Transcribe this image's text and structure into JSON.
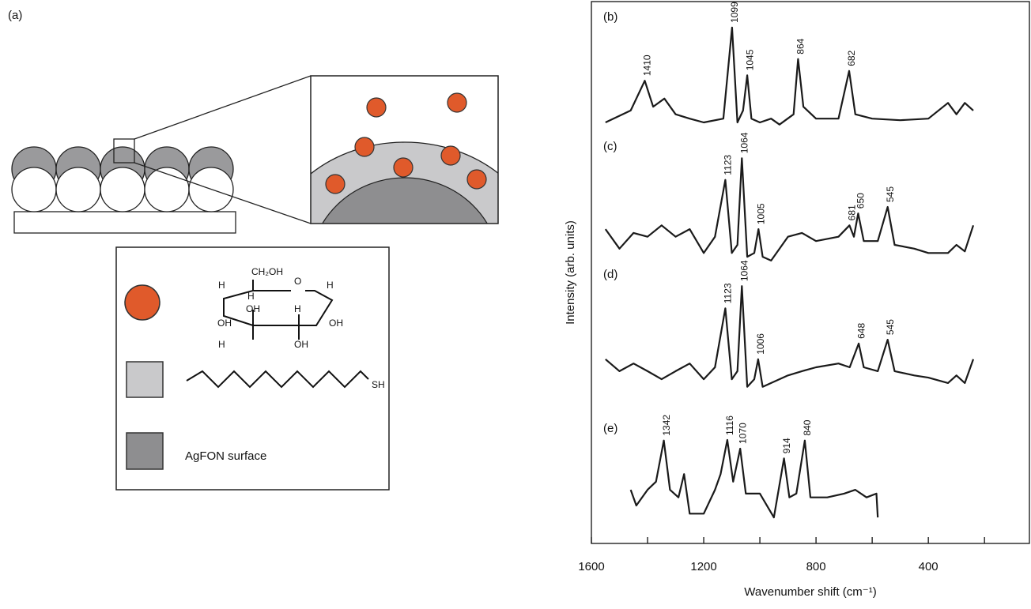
{
  "panel_a": {
    "label": "(a)",
    "structure_labels": [
      "CH₂OH",
      "H",
      "H",
      "O",
      "H",
      "OH",
      "OH",
      "H",
      "OH",
      "H",
      "OH"
    ],
    "thiol_label": "SH",
    "surface_label": "AgFON surface"
  },
  "chart_data": {
    "type": "line",
    "x_label": "Wavenumber shift (cm⁻¹)",
    "y_label": "Intensity (arb. units)",
    "xlim": [
      1600,
      40
    ],
    "ylim": [
      0,
      100
    ],
    "xticks": [
      1600,
      1200,
      800,
      400
    ],
    "minor_xticks": [
      1400,
      1000,
      600,
      200
    ],
    "color": "#1a1a1a",
    "series": [
      {
        "name": "(b)",
        "x": [
          1550,
          1460,
          1410,
          1380,
          1340,
          1300,
          1250,
          1200,
          1130,
          1099,
          1080,
          1060,
          1045,
          1030,
          1000,
          960,
          930,
          880,
          864,
          845,
          800,
          720,
          682,
          660,
          600,
          500,
          400,
          330,
          300,
          270,
          240
        ],
        "values": [
          77.7,
          79.9,
          85.4,
          80.6,
          82.1,
          79.2,
          78.4,
          77.7,
          78.4,
          95.2,
          77.7,
          79.9,
          86.4,
          78.4,
          77.7,
          78.4,
          77.3,
          79.2,
          89.4,
          80.6,
          78.4,
          78.4,
          87.2,
          79.2,
          78.4,
          78.1,
          78.4,
          81.3,
          79.2,
          81.3,
          79.9
        ],
        "peaks": [
          1410,
          1099,
          1045,
          864,
          682
        ]
      },
      {
        "name": "(c)",
        "x": [
          1550,
          1500,
          1450,
          1400,
          1350,
          1300,
          1250,
          1200,
          1160,
          1123,
          1100,
          1080,
          1064,
          1045,
          1020,
          1005,
          990,
          960,
          900,
          850,
          800,
          720,
          681,
          665,
          650,
          630,
          580,
          545,
          520,
          450,
          400,
          330,
          300,
          270,
          240
        ],
        "values": [
          58.0,
          54.4,
          57.3,
          56.6,
          58.7,
          56.6,
          58.0,
          53.6,
          56.6,
          67.1,
          53.6,
          55.1,
          71.1,
          52.9,
          53.6,
          58.0,
          52.9,
          52.2,
          56.6,
          57.3,
          55.8,
          56.6,
          58.7,
          56.6,
          60.9,
          55.8,
          55.8,
          62.1,
          55.1,
          54.4,
          53.6,
          53.6,
          55.1,
          53.9,
          58.7
        ],
        "peaks": [
          1123,
          1064,
          1005,
          681,
          650,
          545
        ]
      },
      {
        "name": "(d)",
        "x": [
          1550,
          1500,
          1450,
          1400,
          1350,
          1300,
          1250,
          1200,
          1160,
          1123,
          1100,
          1080,
          1064,
          1045,
          1020,
          1006,
          990,
          960,
          900,
          850,
          800,
          720,
          680,
          648,
          630,
          580,
          545,
          520,
          450,
          400,
          330,
          300,
          270,
          240
        ],
        "values": [
          34.0,
          31.8,
          33.2,
          31.8,
          30.3,
          31.8,
          33.2,
          30.3,
          32.5,
          43.4,
          30.3,
          31.8,
          47.5,
          28.9,
          30.3,
          34.0,
          28.9,
          29.6,
          31.0,
          31.8,
          32.5,
          33.2,
          32.5,
          36.9,
          32.5,
          31.8,
          37.6,
          31.8,
          31.0,
          30.6,
          29.6,
          31.0,
          29.6,
          34.0
        ],
        "peaks": [
          1123,
          1064,
          1006,
          648,
          545
        ]
      },
      {
        "name": "(e)",
        "x": [
          1460,
          1440,
          1400,
          1370,
          1342,
          1320,
          1290,
          1270,
          1250,
          1200,
          1160,
          1140,
          1116,
          1095,
          1070,
          1050,
          1000,
          950,
          914,
          895,
          870,
          840,
          820,
          760,
          700,
          660,
          620,
          585,
          580
        ],
        "values": [
          9.9,
          7.0,
          9.9,
          11.4,
          19.0,
          9.9,
          8.5,
          12.8,
          5.5,
          5.5,
          9.9,
          12.8,
          19.1,
          11.4,
          17.5,
          9.2,
          9.2,
          4.8,
          15.7,
          8.5,
          9.2,
          19.0,
          8.5,
          8.5,
          9.2,
          9.9,
          8.5,
          9.2,
          4.8
        ],
        "peaks": [
          1342,
          1116,
          1070,
          914,
          840
        ]
      }
    ]
  }
}
